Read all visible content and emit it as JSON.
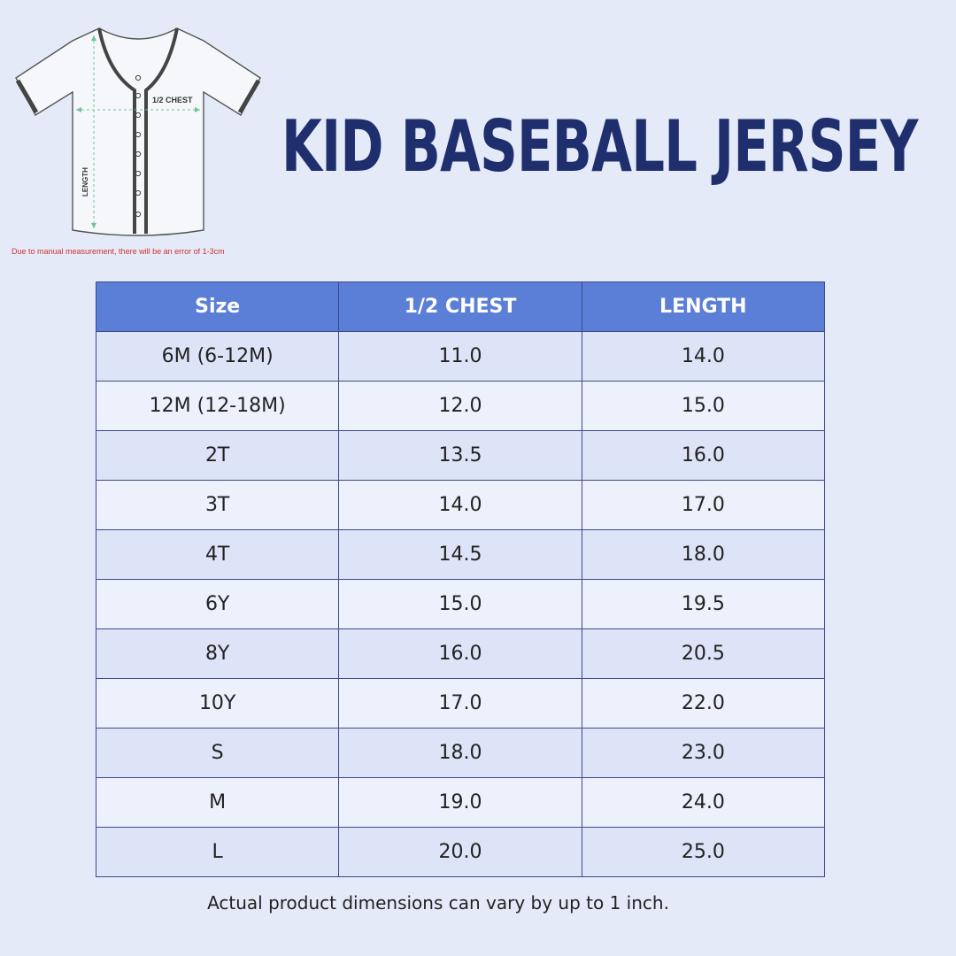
{
  "diagram": {
    "chest_label": "1/2 CHEST",
    "length_label": "LENGTH"
  },
  "note": "Due to manual measurement, there will be an error of 1-3cm",
  "title": "KID BASEBALL JERSEY",
  "table": {
    "headers": [
      "Size",
      "1/2 CHEST",
      "LENGTH"
    ],
    "rows": [
      [
        "6M (6-12M)",
        "11.0",
        "14.0"
      ],
      [
        "12M (12-18M)",
        "12.0",
        "15.0"
      ],
      [
        "2T",
        "13.5",
        "16.0"
      ],
      [
        "3T",
        "14.0",
        "17.0"
      ],
      [
        "4T",
        "14.5",
        "18.0"
      ],
      [
        "6Y",
        "15.0",
        "19.5"
      ],
      [
        "8Y",
        "16.0",
        "20.5"
      ],
      [
        "10Y",
        "17.0",
        "22.0"
      ],
      [
        "S",
        "18.0",
        "23.0"
      ],
      [
        "M",
        "19.0",
        "24.0"
      ],
      [
        "L",
        "20.0",
        "25.0"
      ]
    ]
  },
  "footer": "Actual product dimensions can vary by up to 1 inch.",
  "colors": {
    "background": "#e4eaf7",
    "header_fill": "#5b7fd6",
    "title": "#1f2f6e",
    "note": "#d2322f"
  }
}
